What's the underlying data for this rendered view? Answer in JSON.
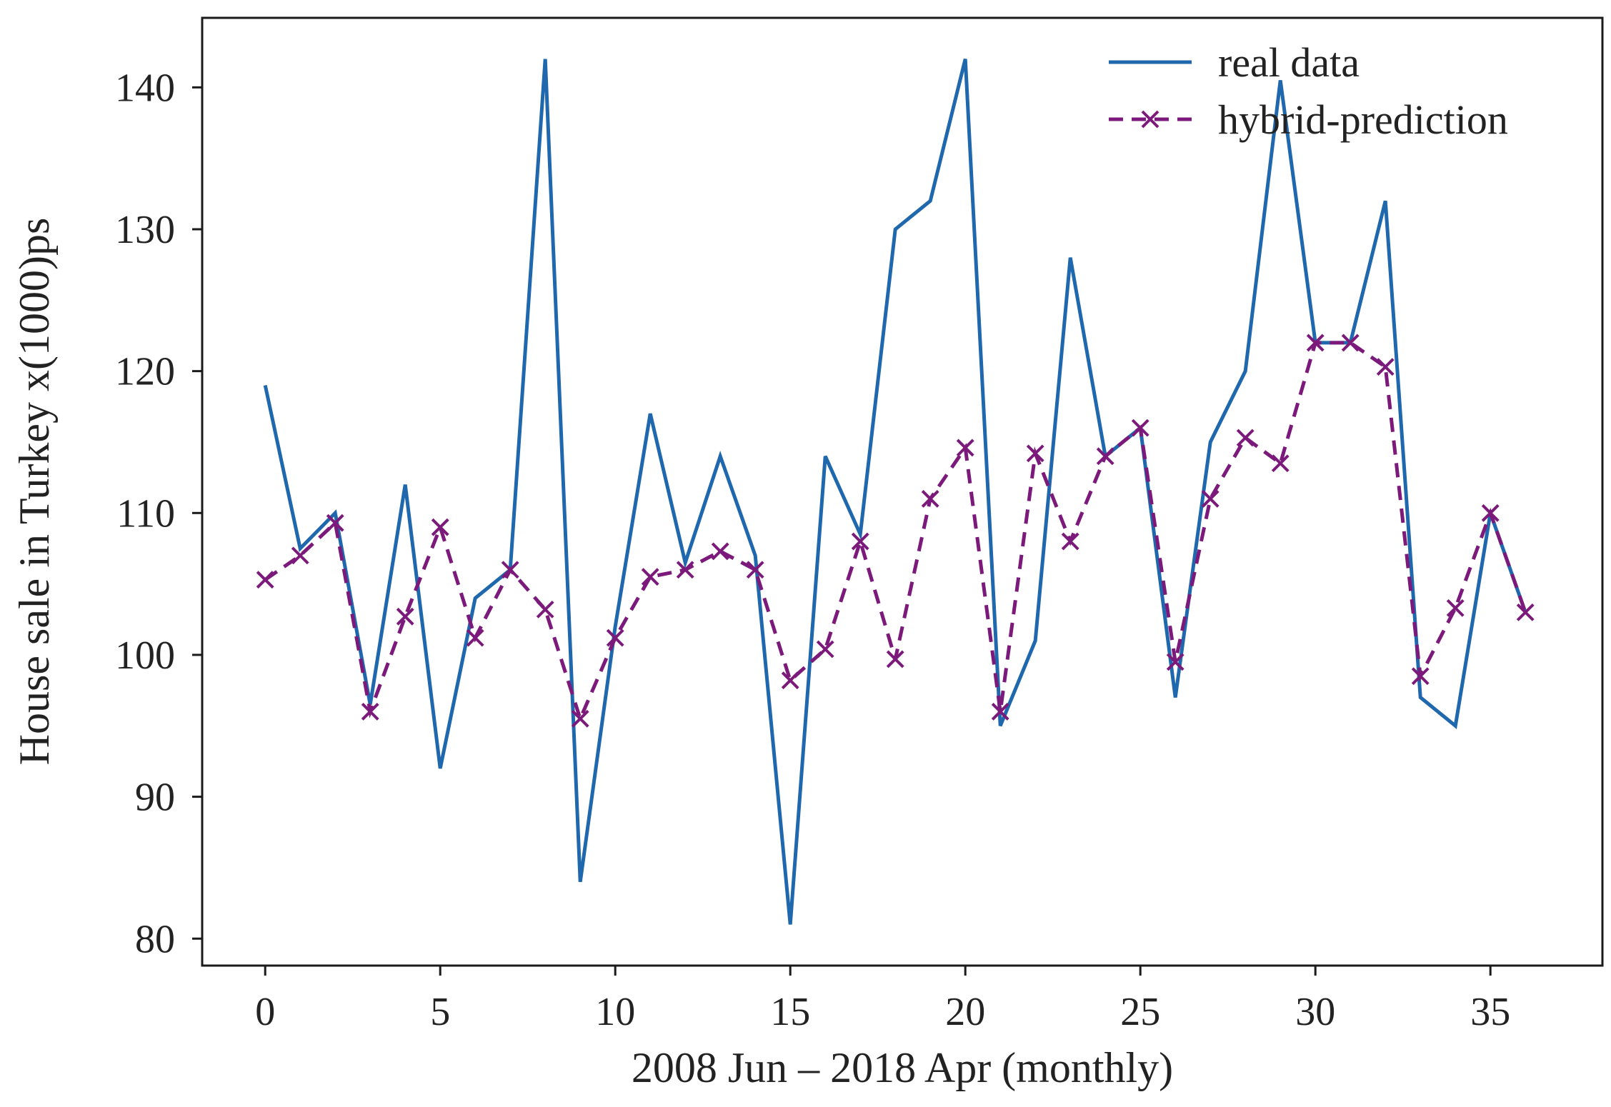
{
  "chart_data": {
    "type": "line",
    "title": "",
    "xlabel": "2008 Jun – 2018 Apr (monthly)",
    "ylabel": "House sale in Turkey x(1000)ps",
    "xlim": [
      -1.8,
      38.2
    ],
    "ylim": [
      78.1,
      144.9
    ],
    "xticks": [
      0,
      5,
      10,
      15,
      20,
      25,
      30,
      35
    ],
    "yticks": [
      80,
      90,
      100,
      110,
      120,
      130,
      140
    ],
    "grid": false,
    "legend_position": "top-right",
    "x": [
      0,
      1,
      2,
      3,
      4,
      5,
      6,
      7,
      8,
      9,
      10,
      11,
      12,
      13,
      14,
      15,
      16,
      17,
      18,
      19,
      20,
      21,
      22,
      23,
      24,
      25,
      26,
      27,
      28,
      29,
      30,
      31,
      32,
      33,
      34,
      35,
      36
    ],
    "series": [
      {
        "name": "real data",
        "color": "#1f68ad",
        "style": "solid",
        "marker": "none",
        "values": [
          119,
          107.5,
          110,
          96.5,
          112,
          92,
          104,
          106,
          142,
          84,
          102,
          117,
          106.5,
          114,
          107,
          81,
          114,
          108.5,
          130,
          132,
          142,
          95,
          101,
          128,
          114,
          116,
          97,
          115,
          120,
          140.5,
          122,
          122,
          132,
          97,
          95,
          110,
          103
        ]
      },
      {
        "name": "hybrid-prediction",
        "color": "#7b1a7b",
        "style": "dashed",
        "marker": "x",
        "values": [
          105.3,
          107,
          109.3,
          96,
          102.7,
          109,
          101.2,
          106,
          103.2,
          95.5,
          101.2,
          105.5,
          106,
          107.3,
          106,
          98.2,
          100.4,
          108,
          99.7,
          111,
          114.6,
          96,
          114.2,
          108,
          114,
          116,
          99.5,
          111,
          115.3,
          113.5,
          122,
          122,
          120.3,
          98.5,
          103.3,
          110,
          103
        ]
      }
    ]
  }
}
